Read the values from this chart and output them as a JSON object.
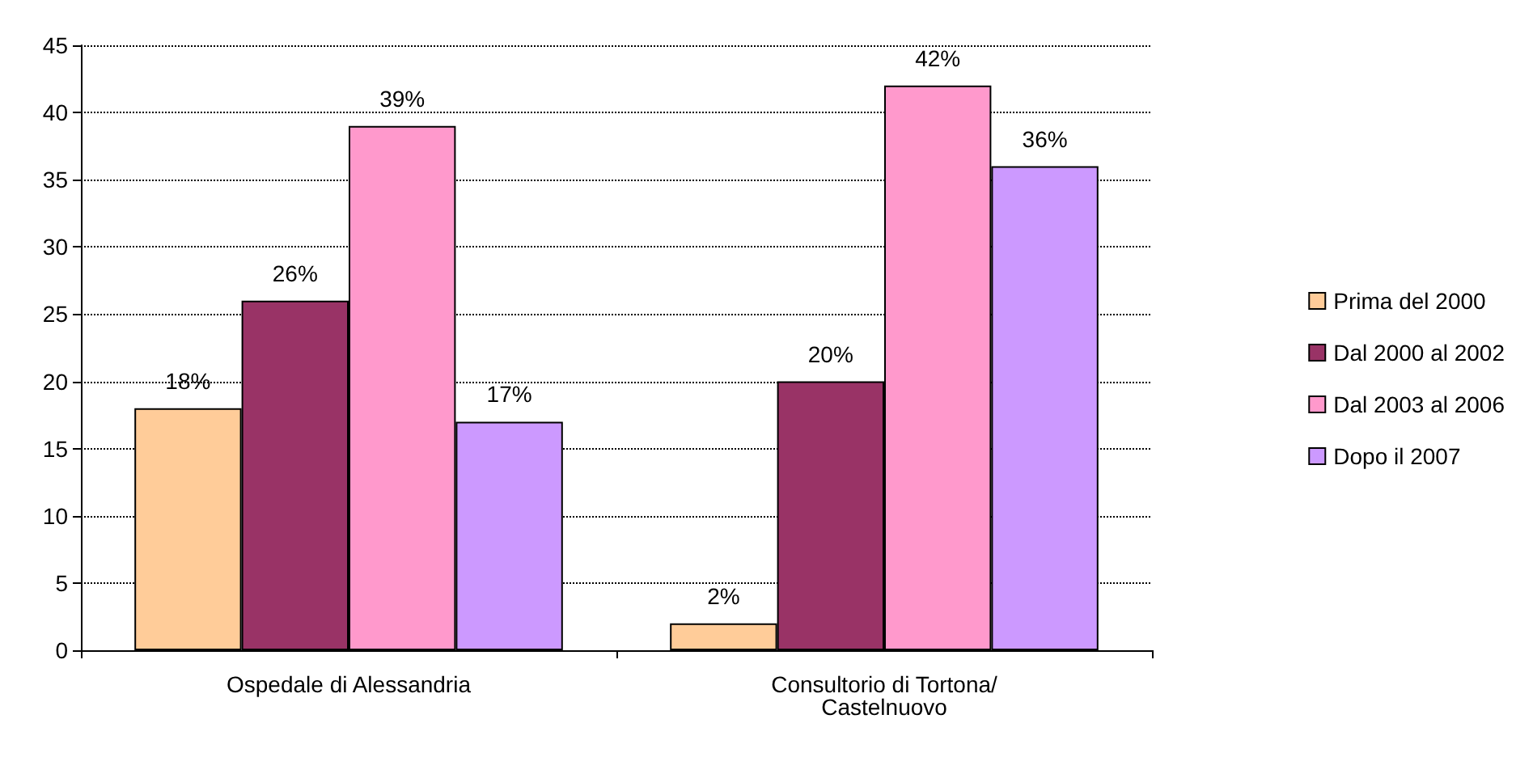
{
  "chart_data": {
    "type": "bar",
    "categories": [
      "Ospedale di Alessandria",
      "Consultorio di Tortona/Castelnuovo"
    ],
    "series": [
      {
        "name": "Prima del 2000",
        "color": "#ffcc99",
        "values": [
          18,
          2
        ],
        "value_labels": [
          "18%",
          "2%"
        ]
      },
      {
        "name": "Dal 2000 al 2002",
        "color": "#993366",
        "values": [
          26,
          20
        ],
        "value_labels": [
          "26%",
          "20%"
        ]
      },
      {
        "name": "Dal 2003 al 2006",
        "color": "#ff99cc",
        "values": [
          39,
          42
        ],
        "value_labels": [
          "39%",
          "42%"
        ]
      },
      {
        "name": "Dopo il 2007",
        "color": "#cc99ff",
        "values": [
          17,
          36
        ],
        "value_labels": [
          "17%",
          "36%"
        ]
      }
    ],
    "ylim": [
      0,
      45
    ],
    "yticks": [
      0,
      5,
      10,
      15,
      20,
      25,
      30,
      35,
      40,
      45
    ],
    "grid": "y",
    "legend": "right"
  }
}
